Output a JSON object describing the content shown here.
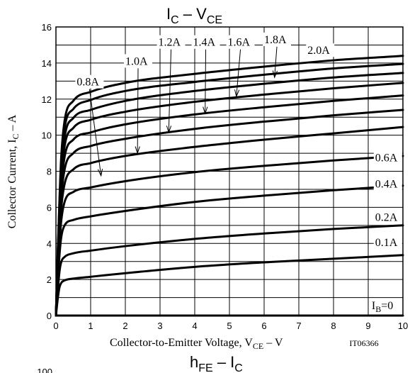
{
  "chart_data": [
    {
      "type": "line",
      "title": {
        "main": "I",
        "sub": "C",
        "sep": " – ",
        "main2": "V",
        "sub2": "CE"
      },
      "xlabel": {
        "pre": "Collector-to-Emitter Voltage, V",
        "sub": "CE",
        "post": " – V"
      },
      "ylabel": {
        "pre": "Collector Current, I",
        "sub": "C",
        "post": " – A"
      },
      "figure_code": "IT06366",
      "xlim": [
        0,
        10
      ],
      "ylim": [
        0,
        16
      ],
      "x_ticks": [
        "0",
        "1",
        "2",
        "3",
        "4",
        "5",
        "6",
        "7",
        "8",
        "9",
        "10"
      ],
      "y_ticks": [
        "0",
        "2",
        "4",
        "6",
        "8",
        "10",
        "12",
        "14",
        "16"
      ],
      "grid": true,
      "series": [
        {
          "name": "I_B=0",
          "values": [
            [
              0,
              0
            ],
            [
              10,
              0
            ]
          ]
        },
        {
          "name": "0.1A",
          "values": [
            [
              0,
              0
            ],
            [
              0.05,
              0.9
            ],
            [
              0.1,
              1.55
            ],
            [
              0.15,
              1.8
            ],
            [
              0.25,
              1.95
            ],
            [
              0.5,
              2.05
            ],
            [
              1,
              2.15
            ],
            [
              2,
              2.35
            ],
            [
              4,
              2.7
            ],
            [
              6,
              2.95
            ],
            [
              8,
              3.15
            ],
            [
              10,
              3.35
            ]
          ]
        },
        {
          "name": "0.2A",
          "values": [
            [
              0,
              0
            ],
            [
              0.05,
              1.3
            ],
            [
              0.1,
              2.4
            ],
            [
              0.15,
              2.95
            ],
            [
              0.25,
              3.25
            ],
            [
              0.5,
              3.45
            ],
            [
              1,
              3.6
            ],
            [
              2,
              3.85
            ],
            [
              4,
              4.25
            ],
            [
              6,
              4.55
            ],
            [
              8,
              4.8
            ],
            [
              10,
              5.0
            ]
          ]
        },
        {
          "name": "0.4A",
          "values": [
            [
              0,
              0
            ],
            [
              0.05,
              1.8
            ],
            [
              0.1,
              3.3
            ],
            [
              0.15,
              4.3
            ],
            [
              0.25,
              5.0
            ],
            [
              0.5,
              5.3
            ],
            [
              1,
              5.5
            ],
            [
              2,
              5.8
            ],
            [
              4,
              6.3
            ],
            [
              6,
              6.65
            ],
            [
              8,
              6.95
            ],
            [
              10,
              7.2
            ]
          ]
        },
        {
          "name": "0.6A",
          "values": [
            [
              0,
              0
            ],
            [
              0.05,
              2.1
            ],
            [
              0.1,
              3.9
            ],
            [
              0.15,
              5.2
            ],
            [
              0.25,
              6.3
            ],
            [
              0.5,
              6.85
            ],
            [
              1,
              7.1
            ],
            [
              2,
              7.45
            ],
            [
              4,
              7.95
            ],
            [
              6,
              8.3
            ],
            [
              8,
              8.6
            ],
            [
              10,
              8.85
            ]
          ]
        },
        {
          "name": "0.8A",
          "values": [
            [
              0,
              0
            ],
            [
              0.05,
              2.4
            ],
            [
              0.1,
              4.4
            ],
            [
              0.15,
              5.9
            ],
            [
              0.25,
              7.3
            ],
            [
              0.5,
              8.1
            ],
            [
              1,
              8.45
            ],
            [
              2,
              8.85
            ],
            [
              4,
              9.35
            ],
            [
              6,
              9.75
            ],
            [
              8,
              10.1
            ],
            [
              10,
              10.45
            ]
          ]
        },
        {
          "name": "1.0A",
          "values": [
            [
              0,
              0
            ],
            [
              0.05,
              2.6
            ],
            [
              0.1,
              4.8
            ],
            [
              0.15,
              6.5
            ],
            [
              0.25,
              8.1
            ],
            [
              0.5,
              9.0
            ],
            [
              1,
              9.4
            ],
            [
              2,
              9.8
            ],
            [
              4,
              10.35
            ],
            [
              6,
              10.75
            ],
            [
              8,
              11.1
            ],
            [
              10,
              11.4
            ]
          ]
        },
        {
          "name": "1.2A",
          "values": [
            [
              0,
              0
            ],
            [
              0.05,
              2.8
            ],
            [
              0.1,
              5.2
            ],
            [
              0.15,
              7.0
            ],
            [
              0.25,
              8.8
            ],
            [
              0.5,
              9.75
            ],
            [
              1,
              10.15
            ],
            [
              2,
              10.6
            ],
            [
              4,
              11.15
            ],
            [
              6,
              11.55
            ],
            [
              8,
              11.9
            ],
            [
              10,
              12.2
            ]
          ]
        },
        {
          "name": "1.4A",
          "values": [
            [
              0,
              0
            ],
            [
              0.05,
              3.0
            ],
            [
              0.1,
              5.5
            ],
            [
              0.15,
              7.5
            ],
            [
              0.25,
              9.4
            ],
            [
              0.5,
              10.4
            ],
            [
              1,
              10.85
            ],
            [
              2,
              11.3
            ],
            [
              4,
              11.85
            ],
            [
              6,
              12.25
            ],
            [
              8,
              12.6
            ],
            [
              10,
              12.9
            ]
          ]
        },
        {
          "name": "1.6A",
          "values": [
            [
              0,
              0
            ],
            [
              0.05,
              3.2
            ],
            [
              0.1,
              5.8
            ],
            [
              0.15,
              7.9
            ],
            [
              0.25,
              9.9
            ],
            [
              0.5,
              10.95
            ],
            [
              1,
              11.4
            ],
            [
              2,
              11.9
            ],
            [
              4,
              12.45
            ],
            [
              6,
              12.85
            ],
            [
              8,
              13.2
            ],
            [
              10,
              13.45
            ]
          ]
        },
        {
          "name": "1.8A",
          "values": [
            [
              0,
              0
            ],
            [
              0.05,
              3.3
            ],
            [
              0.1,
              6.1
            ],
            [
              0.15,
              8.3
            ],
            [
              0.25,
              10.4
            ],
            [
              0.5,
              11.45
            ],
            [
              1,
              11.95
            ],
            [
              2,
              12.45
            ],
            [
              4,
              12.95
            ],
            [
              6,
              13.35
            ],
            [
              8,
              13.7
            ],
            [
              10,
              13.95
            ]
          ]
        },
        {
          "name": "2.0A",
          "values": [
            [
              0,
              0
            ],
            [
              0.05,
              3.4
            ],
            [
              0.1,
              6.3
            ],
            [
              0.15,
              8.7
            ],
            [
              0.25,
              10.8
            ],
            [
              0.5,
              11.9
            ],
            [
              1,
              12.4
            ],
            [
              2,
              12.9
            ],
            [
              4,
              13.4
            ],
            [
              6,
              13.8
            ],
            [
              8,
              14.15
            ],
            [
              10,
              14.4
            ]
          ]
        }
      ],
      "annotations": [
        {
          "label": "0.8A",
          "text_x": 0.6,
          "text_y": 12.75,
          "arrow_to": [
            1.3,
            7.75
          ]
        },
        {
          "label": "1.0A",
          "text_x": 2.0,
          "text_y": 13.9,
          "arrow_to": [
            2.35,
            9.0
          ]
        },
        {
          "label": "1.2A",
          "text_x": 2.95,
          "text_y": 14.95,
          "arrow_to": [
            3.25,
            10.15
          ]
        },
        {
          "label": "1.4A",
          "text_x": 3.95,
          "text_y": 14.95,
          "arrow_to": [
            4.3,
            11.2
          ]
        },
        {
          "label": "1.6A",
          "text_x": 4.95,
          "text_y": 14.95,
          "arrow_to": [
            5.2,
            12.15
          ]
        },
        {
          "label": "1.8A",
          "text_x": 6.0,
          "text_y": 15.1,
          "arrow_to": [
            6.3,
            13.2
          ]
        },
        {
          "label": "2.0A",
          "text_x": 7.25,
          "text_y": 14.5
        },
        {
          "label": "0.6A",
          "text_x": 9.2,
          "text_y": 8.55
        },
        {
          "label": "0.4A",
          "text_x": 9.2,
          "text_y": 7.1
        },
        {
          "label": "0.2A",
          "text_x": 9.2,
          "text_y": 5.25
        },
        {
          "label": "0.1A",
          "text_x": 9.2,
          "text_y": 3.85
        },
        {
          "label_pre": "I",
          "label_sub": "B",
          "label_post": "=0",
          "text_x": 9.1,
          "text_y": 0.35
        }
      ]
    },
    {
      "type": "line",
      "title": {
        "main": "h",
        "sub": "FE",
        "sep": " – ",
        "main2": "I",
        "sub2": "C"
      },
      "y_ticks_visible": [
        "100"
      ]
    }
  ]
}
